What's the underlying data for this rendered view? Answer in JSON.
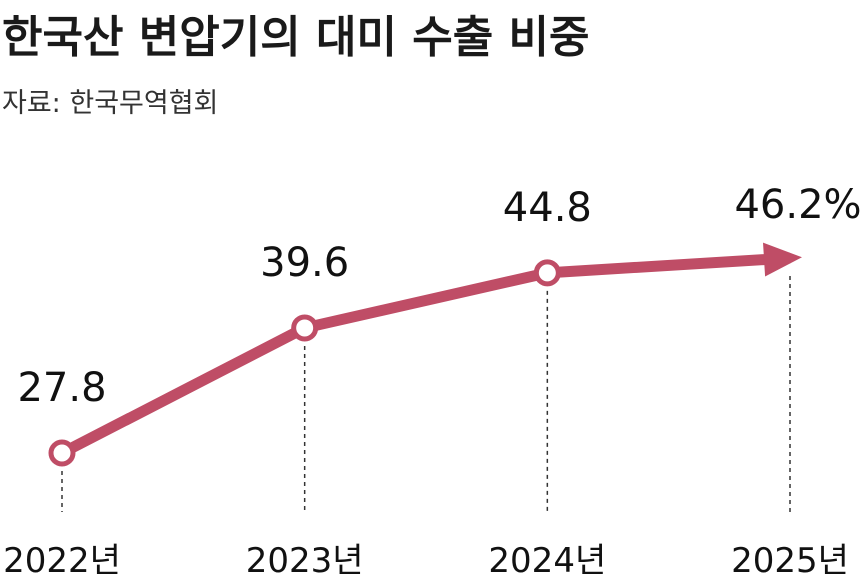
{
  "chart_data": {
    "type": "line",
    "title": "한국산 변압기의 대미 수출 비중",
    "subtitle": "자료: 한국무역협회",
    "categories": [
      "2022년",
      "2023년",
      "2024년",
      "2025년"
    ],
    "values": [
      27.8,
      39.6,
      44.8,
      46.2
    ],
    "value_labels": [
      "27.8",
      "39.6",
      "44.8",
      "46.2%"
    ],
    "color": "#bf4d66"
  }
}
